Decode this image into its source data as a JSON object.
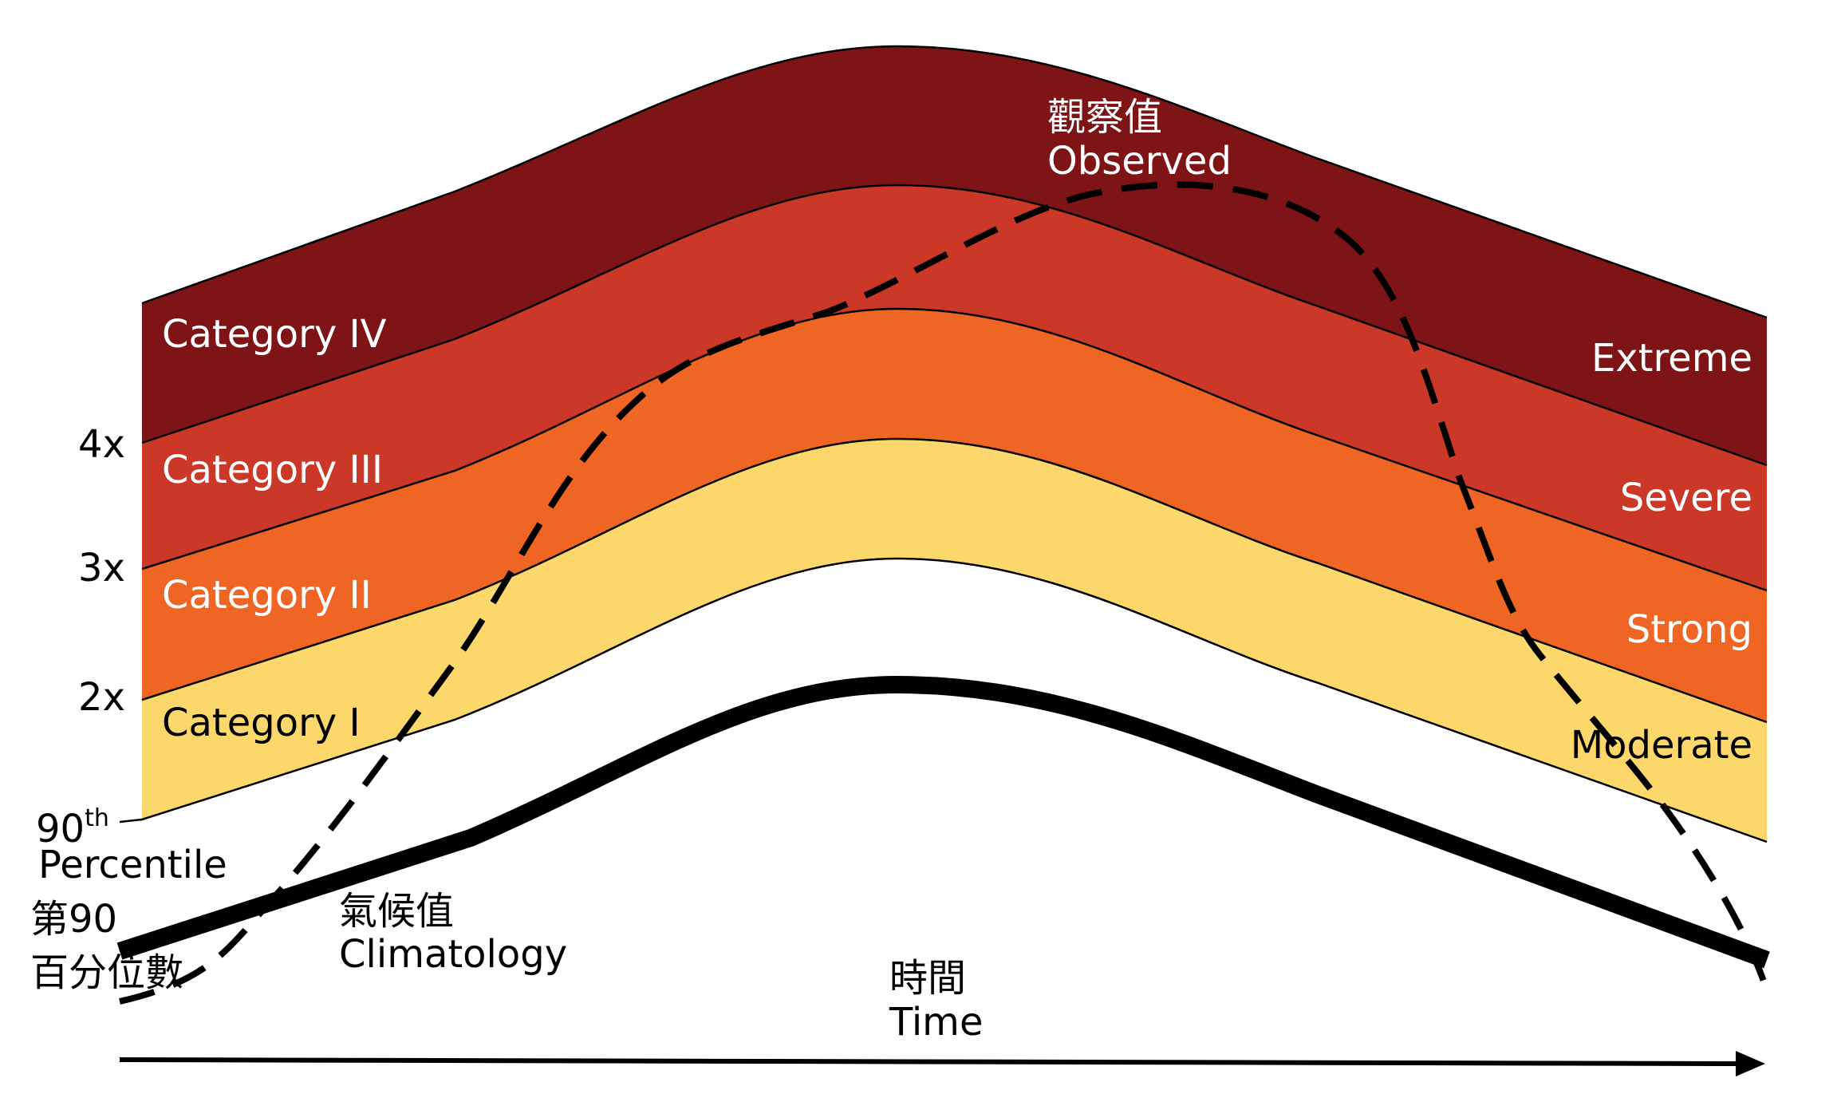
{
  "diagram": {
    "colors": {
      "extreme": "#7E1416",
      "severe": "#CB3828",
      "strong": "#EE6524",
      "moderate": "#FCD76B",
      "background": "#FFFFFF",
      "lines": "#000000"
    },
    "category_labels": {
      "cat4": "Category IV",
      "cat3": "Category III",
      "cat2": "Category II",
      "cat1": "Category I"
    },
    "intensity_labels": {
      "extreme": "Extreme",
      "severe": "Severe",
      "strong": "Strong",
      "moderate": "Moderate"
    },
    "multipliers": {
      "m4": "4x",
      "m3": "3x",
      "m2": "2x"
    },
    "percentile": {
      "number": "90",
      "suffix": "th",
      "label": "Percentile",
      "zh_line1": "第90",
      "zh_line2": "百分位數"
    },
    "climatology": {
      "zh": "氣候值",
      "en": "Climatology"
    },
    "observed": {
      "zh": "觀察值",
      "en": "Observed"
    },
    "time_axis": {
      "zh": "時間",
      "en": "Time"
    }
  }
}
